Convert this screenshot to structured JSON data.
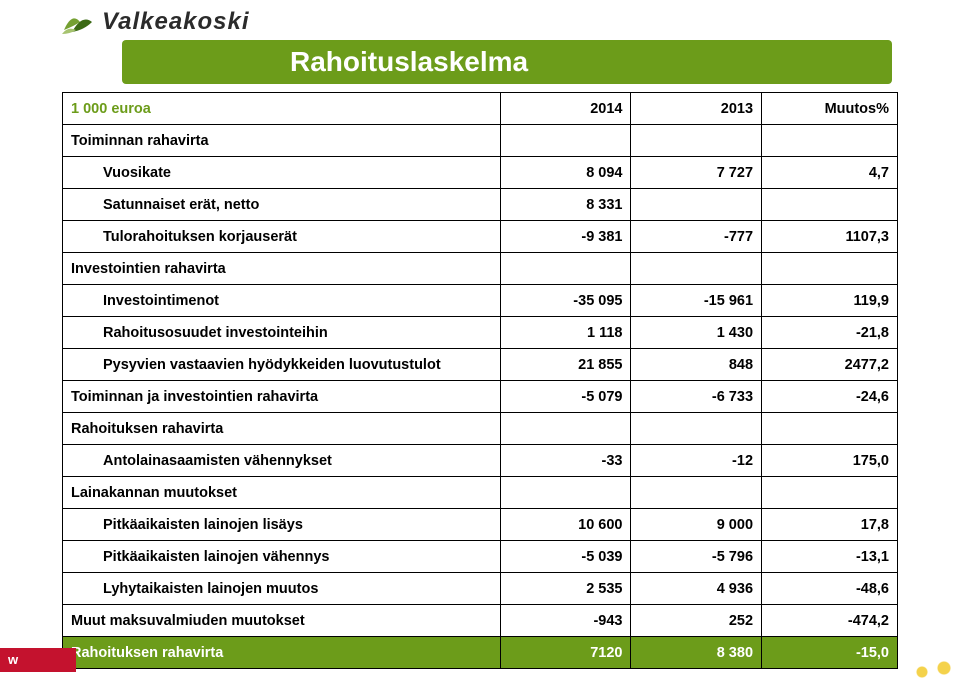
{
  "brand": {
    "name": "Valkeakoski",
    "leaf_colors": [
      "#75a032",
      "#3b6914",
      "#a6c36f"
    ]
  },
  "title": "Rahoituslaskelma",
  "accent_color": "#6c9c1a",
  "footer": {
    "text": "w",
    "bg": "#c4122e"
  },
  "header": {
    "c0": "1 000 euroa",
    "c1": "2014",
    "c2": "2013",
    "c3": "Muutos%"
  },
  "rows": [
    {
      "type": "section",
      "label": "Toiminnan rahavirta",
      "v1": "",
      "v2": "",
      "v3": ""
    },
    {
      "type": "sub",
      "label": "Vuosikate",
      "v1": "8 094",
      "v2": "7 727",
      "v3": "4,7"
    },
    {
      "type": "sub",
      "label": "Satunnaiset erät, netto",
      "v1": "8 331",
      "v2": "",
      "v3": ""
    },
    {
      "type": "sub",
      "label": "Tulorahoituksen korjauserät",
      "v1": "-9 381",
      "v2": "-777",
      "v3": "1107,3"
    },
    {
      "type": "section",
      "label": "Investointien rahavirta",
      "v1": "",
      "v2": "",
      "v3": ""
    },
    {
      "type": "sub",
      "label": "Investointimenot",
      "v1": "-35 095",
      "v2": "-15 961",
      "v3": "119,9"
    },
    {
      "type": "sub",
      "label": "Rahoitusosuudet investointeihin",
      "v1": "1 118",
      "v2": "1 430",
      "v3": "-21,8"
    },
    {
      "type": "sub",
      "label": "Pysyvien vastaavien hyödykkeiden luovutustulot",
      "v1": "21 855",
      "v2": "848",
      "v3": "2477,2"
    },
    {
      "type": "section",
      "label": "Toiminnan ja investointien rahavirta",
      "v1": "-5 079",
      "v2": "-6 733",
      "v3": "-24,6"
    },
    {
      "type": "section",
      "label": "Rahoituksen rahavirta",
      "v1": "",
      "v2": "",
      "v3": ""
    },
    {
      "type": "sub",
      "label": "Antolainasaamisten vähennykset",
      "v1": "-33",
      "v2": "-12",
      "v3": "175,0"
    },
    {
      "type": "section",
      "label": "Lainakannan muutokset",
      "v1": "",
      "v2": "",
      "v3": ""
    },
    {
      "type": "sub",
      "label": "Pitkäaikaisten lainojen lisäys",
      "v1": "10 600",
      "v2": "9 000",
      "v3": "17,8"
    },
    {
      "type": "sub",
      "label": "Pitkäaikaisten lainojen vähennys",
      "v1": "-5 039",
      "v2": "-5 796",
      "v3": "-13,1"
    },
    {
      "type": "sub",
      "label": "Lyhytaikaisten lainojen muutos",
      "v1": "2 535",
      "v2": "4 936",
      "v3": "-48,6"
    },
    {
      "type": "section",
      "label": "Muut maksuvalmiuden muutokset",
      "v1": "-943",
      "v2": "252",
      "v3": "-474,2"
    },
    {
      "type": "total",
      "label": "Rahoituksen rahavirta",
      "v1": "7120",
      "v2": "8 380",
      "v3": "-15,0"
    }
  ]
}
